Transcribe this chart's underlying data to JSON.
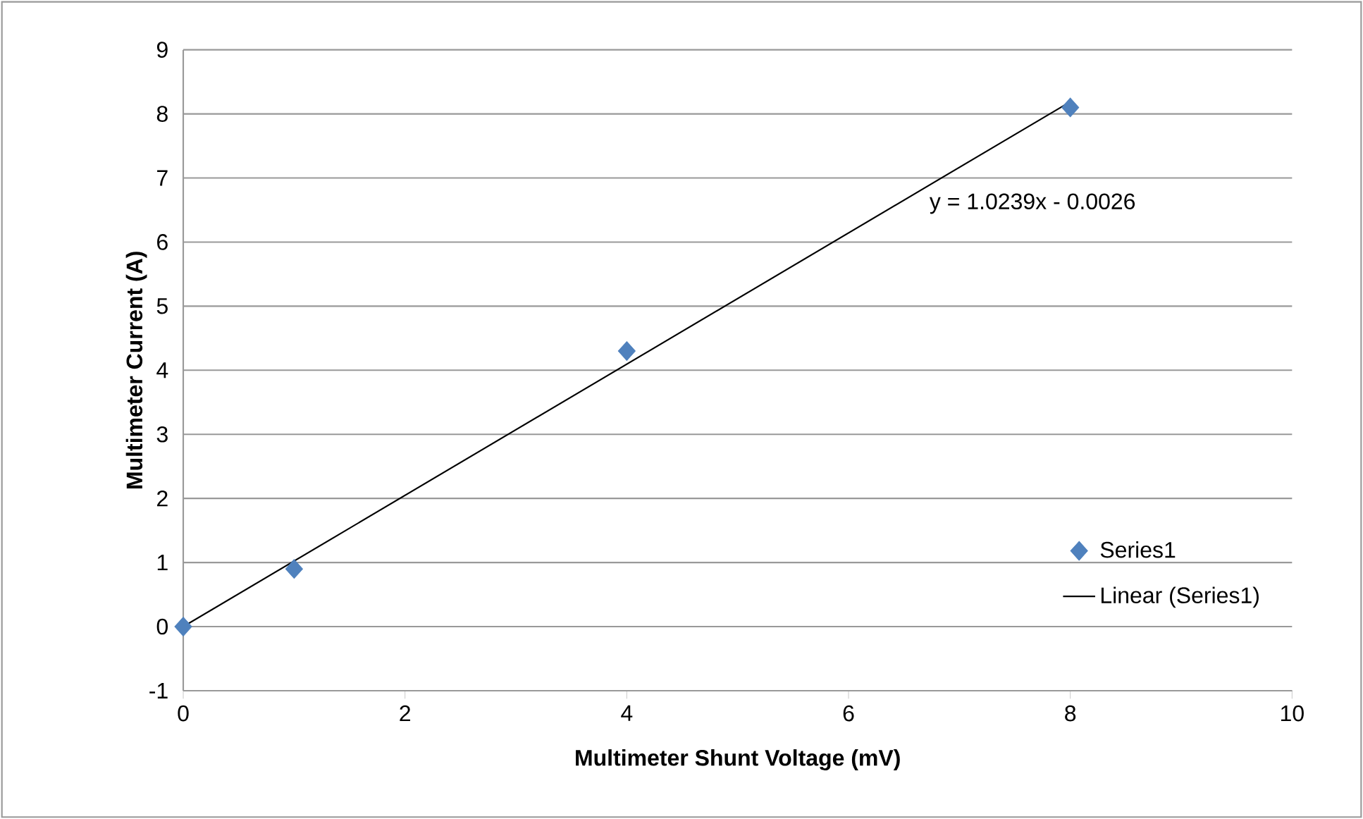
{
  "chart_data": {
    "type": "scatter",
    "xlabel": "Multimeter Shunt Voltage (mV)",
    "ylabel": "Multimeter Current (A)",
    "xlim": [
      0,
      10
    ],
    "xticks": [
      0,
      2,
      4,
      6,
      8,
      10
    ],
    "ylim": [
      -1,
      9
    ],
    "yticks": [
      -1,
      0,
      1,
      2,
      3,
      4,
      5,
      6,
      7,
      8,
      9
    ],
    "grid": "y",
    "legend": "bottom right",
    "series": [
      {
        "name": "Series1",
        "marker": "diamond",
        "color": "#4f81bd",
        "x": [
          0,
          1,
          4,
          8
        ],
        "values": [
          0,
          0.9,
          4.3,
          8.1
        ]
      },
      {
        "name": "Linear (Series1)",
        "type": "line",
        "marker": "none",
        "color": "#000000",
        "x": [
          0,
          8
        ],
        "values": [
          0,
          8.19
        ]
      }
    ],
    "annotations": [
      "y = 1.0239x - 0.0026"
    ]
  }
}
